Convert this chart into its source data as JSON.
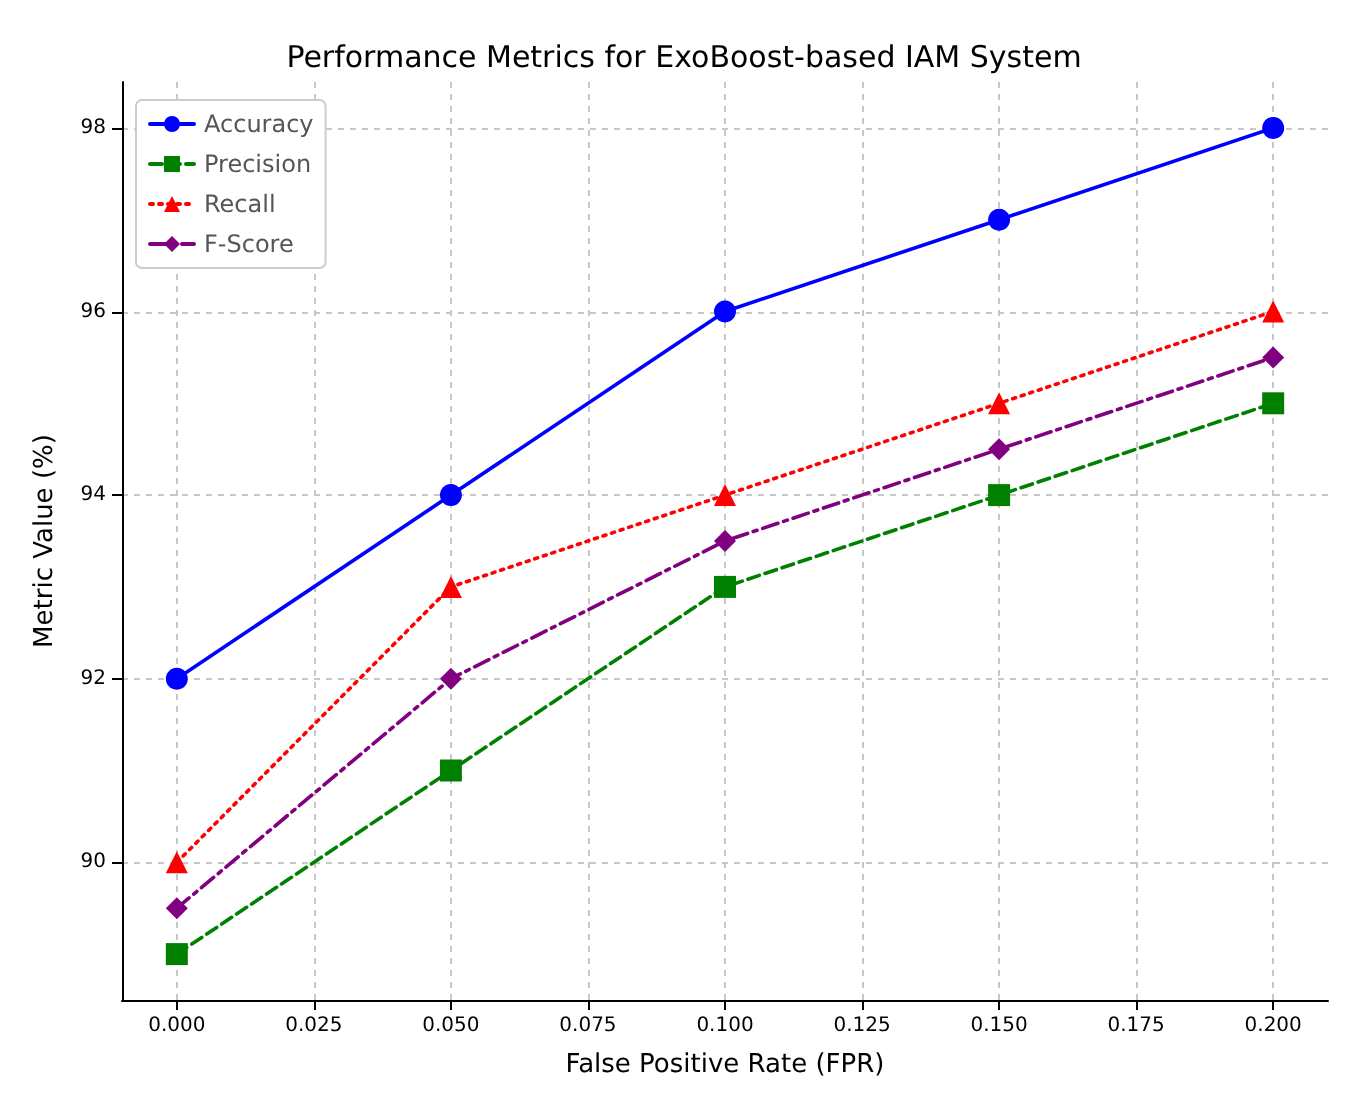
{
  "chart_data": {
    "type": "line",
    "title": "Performance Metrics for ExoBoost-based IAM System",
    "xlabel": "False Positive Rate (FPR)",
    "ylabel": "Metric Value (%)",
    "x": [
      0,
      0.05,
      0.1,
      0.15,
      0.2
    ],
    "series": [
      {
        "name": "Accuracy",
        "color": "#0000ff",
        "values": [
          92,
          94,
          96,
          97,
          98
        ],
        "marker": "circle",
        "line_style": "solid"
      },
      {
        "name": "Precision",
        "color": "#008000",
        "values": [
          89,
          91,
          93,
          94,
          95
        ],
        "marker": "square",
        "line_style": "dashed"
      },
      {
        "name": "Recall",
        "color": "#ff0000",
        "values": [
          90,
          93,
          94,
          95,
          96
        ],
        "marker": "triangle",
        "line_style": "dotted"
      },
      {
        "name": "F-Score",
        "color": "#800080",
        "values": [
          89.5,
          92,
          93.5,
          94.5,
          95.5
        ],
        "marker": "diamond",
        "line_style": "dashdot"
      }
    ],
    "xlim": [
      -0.01,
      0.21
    ],
    "ylim": [
      88.5,
      98.5
    ],
    "xticks": [
      {
        "value": 0,
        "label": "0.000"
      },
      {
        "value": 0.025,
        "label": "0.025"
      },
      {
        "value": 0.05,
        "label": "0.050"
      },
      {
        "value": 0.075,
        "label": "0.075"
      },
      {
        "value": 0.1,
        "label": "0.100"
      },
      {
        "value": 0.125,
        "label": "0.125"
      },
      {
        "value": 0.15,
        "label": "0.150"
      },
      {
        "value": 0.175,
        "label": "0.175"
      },
      {
        "value": 0.2,
        "label": "0.200"
      }
    ],
    "yticks": [
      90,
      92,
      94,
      96,
      98
    ],
    "grid": true,
    "legend": "top left"
  }
}
